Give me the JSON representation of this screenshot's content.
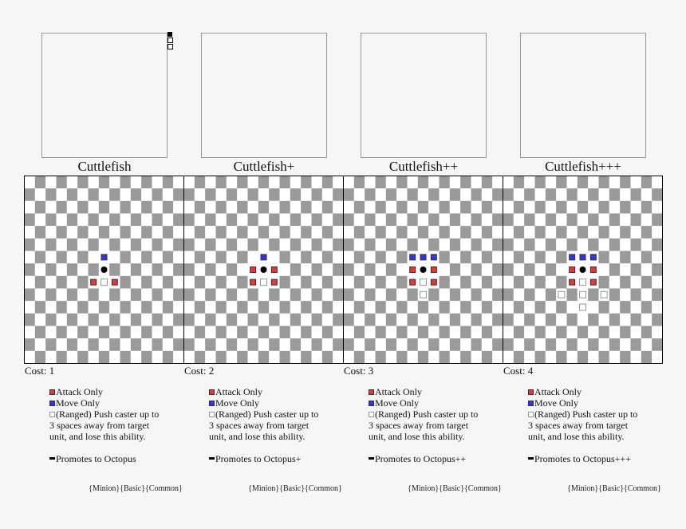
{
  "cards": [
    {
      "name": "Cuttlefish",
      "cost": "Cost: 1",
      "legend": {
        "attack": "Attack Only",
        "move": "Move Only",
        "ranged": "(Ranged) Push caster up to 3 spaces away from target unit, and lose this ability.",
        "promotes": "Promotes to Octopus"
      },
      "tags": "{Minion}{Basic}{Common}"
    },
    {
      "name": "Cuttlefish+",
      "cost": "Cost: 2",
      "legend": {
        "attack": "Attack Only",
        "move": "Move Only",
        "ranged": "(Ranged) Push caster up to 3 spaces away from target unit, and lose this ability.",
        "promotes": "Promotes to Octopus+"
      },
      "tags": "{Minion}{Basic}{Common}"
    },
    {
      "name": "Cuttlefish++",
      "cost": "Cost: 3",
      "legend": {
        "attack": "Attack Only",
        "move": "Move Only",
        "ranged": "(Ranged) Push caster up to 3 spaces away from target unit, and lose this ability.",
        "promotes": "Promotes to Octopus++"
      },
      "tags": "{Minion}{Basic}{Common}"
    },
    {
      "name": "Cuttlefish+++",
      "cost": "Cost: 4",
      "legend": {
        "attack": "Attack Only",
        "move": "Move Only",
        "ranged": "(Ranged) Push caster up to 3 spaces away from target unit, and lose this ability.",
        "promotes": "Promotes to Octopus+++"
      },
      "tags": "{Minion}{Basic}{Common}"
    }
  ]
}
